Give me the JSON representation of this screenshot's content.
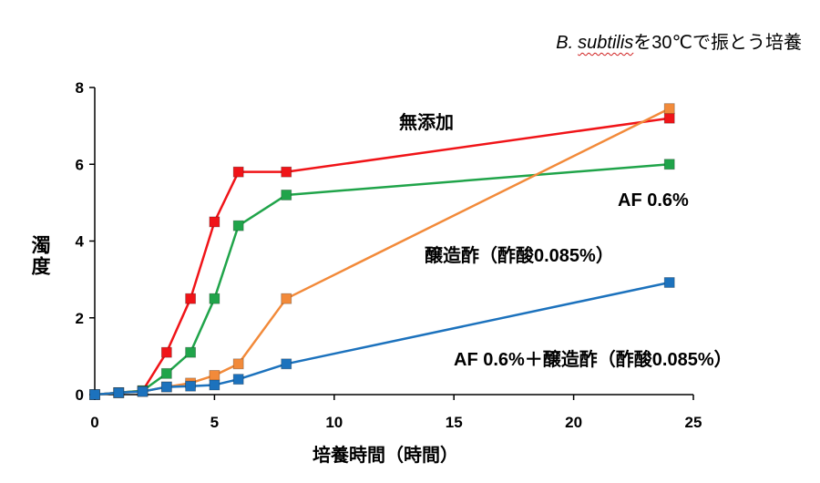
{
  "chart_data": {
    "type": "line",
    "title": {
      "genus": "B.",
      "species": "subtilis",
      "condition": "を30℃で振とう培養"
    },
    "xlabel": "培養時間（時間）",
    "ylabel": "濁度",
    "xlim": [
      0,
      25
    ],
    "ylim": [
      0,
      8
    ],
    "xticks": [
      0,
      5,
      10,
      15,
      20,
      25
    ],
    "yticks": [
      0,
      2,
      4,
      6,
      8
    ],
    "grid": false,
    "legend": false,
    "x": [
      0,
      1,
      2,
      3,
      4,
      5,
      6,
      8,
      24
    ],
    "series": [
      {
        "name": "無添加",
        "color": "#f01418",
        "y": [
          0,
          0.05,
          0.1,
          1.1,
          2.5,
          4.5,
          5.8,
          5.8,
          7.2
        ]
      },
      {
        "name": "AF 0.6%",
        "color": "#20a44a",
        "y": [
          0,
          0.05,
          0.1,
          0.55,
          1.1,
          2.5,
          4.4,
          5.2,
          6.0
        ]
      },
      {
        "name": "醸造酢（酢酸0.085%）",
        "color": "#f28a3a",
        "y": [
          0,
          0.05,
          0.08,
          0.2,
          0.3,
          0.5,
          0.8,
          2.5,
          7.45
        ]
      },
      {
        "name": "AF 0.6%＋醸造酢（酢酸0.085%）",
        "color": "#1c72bd",
        "y": [
          0,
          0.05,
          0.08,
          0.2,
          0.22,
          0.25,
          0.4,
          0.8,
          2.92
        ]
      }
    ]
  }
}
